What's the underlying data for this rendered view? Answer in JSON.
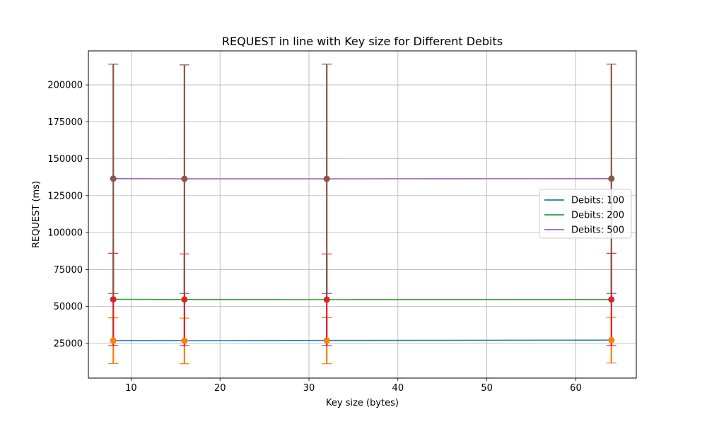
{
  "chart_data": {
    "type": "line",
    "title": "REQUEST in line with Key size for Different Debits",
    "xlabel": "Key size (bytes)",
    "ylabel": "REQUEST (ms)",
    "xlim": [
      5.2,
      66.8
    ],
    "ylim": [
      1500,
      223000
    ],
    "x_ticks": [
      10,
      20,
      30,
      40,
      50,
      60
    ],
    "y_ticks": [
      25000,
      50000,
      75000,
      100000,
      125000,
      150000,
      175000,
      200000
    ],
    "grid": true,
    "legend_position": "center-right",
    "x": [
      8,
      16,
      32,
      64
    ],
    "series": [
      {
        "name": "Debits: 100",
        "line_color": "#1f77b4",
        "errorbar_color": "#ff7f0e",
        "values": [
          26900,
          26800,
          27000,
          27200
        ],
        "error_low": [
          11300,
          11200,
          11200,
          11700
        ],
        "error_high": [
          42300,
          42100,
          42400,
          42600
        ]
      },
      {
        "name": "Debits: 200",
        "line_color": "#2ca02c",
        "errorbar_color": "#d62728",
        "values": [
          54800,
          54700,
          54600,
          54700
        ],
        "error_low": [
          23500,
          23500,
          23500,
          23500
        ],
        "error_high": [
          86000,
          85500,
          85500,
          86000
        ]
      },
      {
        "name": "Debits: 500",
        "line_color": "#9467bd",
        "errorbar_color": "#8c564b",
        "values": [
          136500,
          136400,
          136400,
          136500
        ],
        "error_low": [
          58800,
          58800,
          58800,
          58800
        ],
        "error_high": [
          214000,
          213500,
          214000,
          214000
        ]
      }
    ]
  }
}
